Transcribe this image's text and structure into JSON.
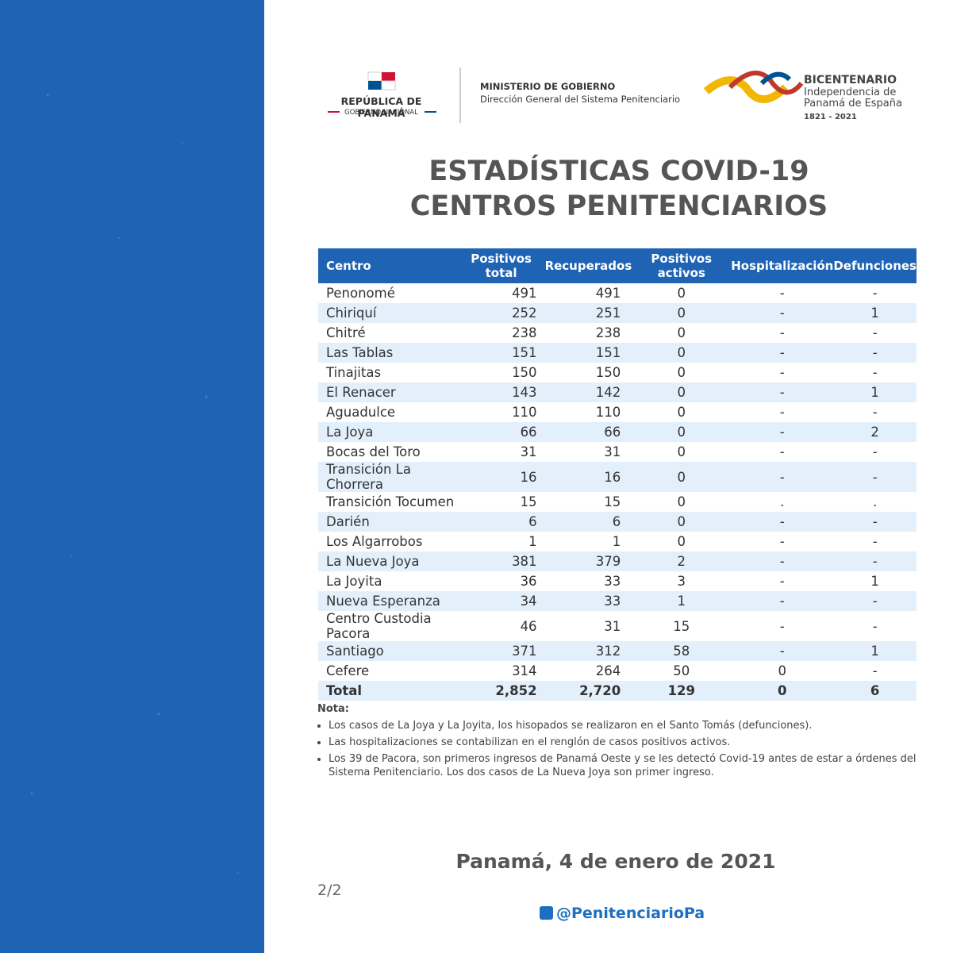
{
  "header": {
    "country": "REPÚBLICA DE PANAMÁ",
    "government": "GOBIERNO NACIONAL",
    "ministry": "MINISTERIO DE GOBIERNO",
    "direction": "Dirección General del Sistema Penitenciario",
    "bicentennial": {
      "title": "BICENTENARIO",
      "line1": "Independencia de",
      "line2": "Panamá de España",
      "years": "1821 - 2021"
    }
  },
  "title": [
    "ESTADÍSTICAS COVID-19",
    "CENTROS PENITENCIARIOS"
  ],
  "table": {
    "columns": [
      "Centro",
      "Positivos total",
      "Recuperados",
      "Positivos activos",
      "Hospitalización",
      "Defunciones"
    ],
    "rows": [
      [
        "Penonomé",
        491,
        491,
        0,
        "-",
        "-"
      ],
      [
        "Chiriquí",
        252,
        251,
        0,
        "-",
        1
      ],
      [
        "Chitré",
        238,
        238,
        0,
        "-",
        "-"
      ],
      [
        "Las Tablas",
        151,
        151,
        0,
        "-",
        "-"
      ],
      [
        "Tinajitas",
        150,
        150,
        0,
        "-",
        "-"
      ],
      [
        "El Renacer",
        143,
        142,
        0,
        "-",
        1
      ],
      [
        "Aguadulce",
        110,
        110,
        0,
        "-",
        "-"
      ],
      [
        "La Joya",
        66,
        66,
        0,
        "-",
        2
      ],
      [
        "Bocas del Toro",
        31,
        31,
        0,
        "-",
        "-"
      ],
      [
        "Transición La Chorrera",
        16,
        16,
        0,
        "-",
        "-"
      ],
      [
        "Transición Tocumen",
        15,
        15,
        0,
        ".",
        "."
      ],
      [
        "Darién",
        6,
        6,
        0,
        "-",
        "-"
      ],
      [
        "Los Algarrobos",
        1,
        1,
        0,
        "-",
        "-"
      ],
      [
        "La Nueva Joya",
        381,
        379,
        2,
        "-",
        "-"
      ],
      [
        "La Joyita",
        36,
        33,
        3,
        "-",
        1
      ],
      [
        "Nueva Esperanza",
        34,
        33,
        1,
        "-",
        "-"
      ],
      [
        "Centro Custodia Pacora",
        46,
        31,
        15,
        "-",
        "-"
      ],
      [
        "Santiago",
        371,
        312,
        58,
        "-",
        1
      ],
      [
        "Cefere",
        314,
        264,
        50,
        0,
        "-"
      ]
    ],
    "total": [
      "Total",
      "2,852",
      "2,720",
      129,
      0,
      6
    ]
  },
  "notes": {
    "label": "Nota:",
    "items": [
      "Los casos de La Joya y La Joyita, los hisopados se realizaron en el Santo Tomás (defunciones).",
      "Las hospitalizaciones se contabilizan en el renglón de casos positivos activos.",
      "Los 39 de Pacora, son primeros ingresos de Panamá Oeste y se les detectó Covid-19 antes de estar a órdenes del Sistema Penitenciario. Los dos casos de La Nueva Joya son primer ingreso."
    ]
  },
  "date": "Panamá, 4 de enero de 2021",
  "page": "2/2",
  "twitter": "@PenitenciarioPa"
}
